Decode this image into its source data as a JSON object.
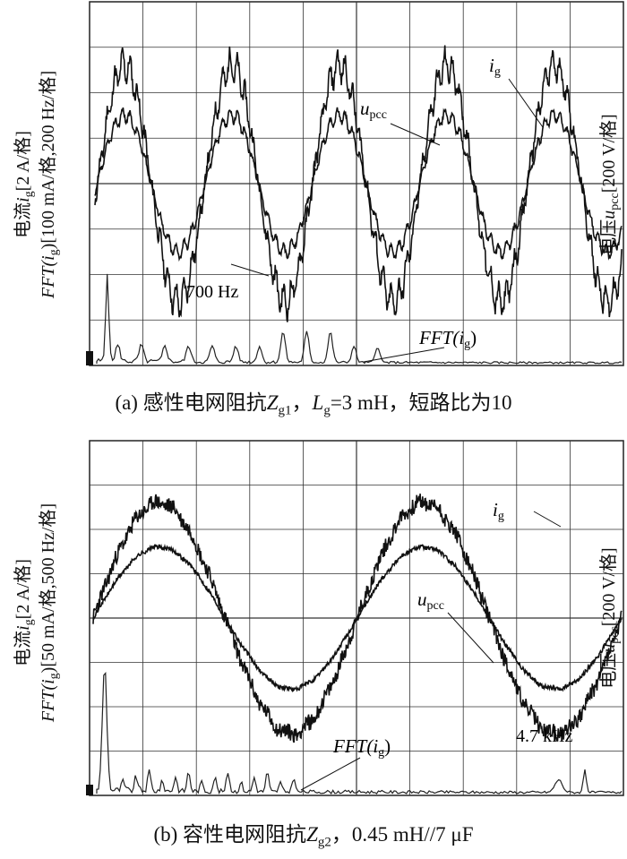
{
  "chart_data": [
    {
      "type": "line",
      "panel": "a",
      "caption": {
        "prefix": "(a) 感性电网阻抗",
        "z": "Z",
        "zsub": "g1",
        "mid": "，",
        "l": "L",
        "lsub": "g",
        "suffix": "=3 mH，短路比为10"
      },
      "ylabel_left": {
        "line1_prefix": "电流",
        "line1_var": "i",
        "line1_sub": "g",
        "line1_suffix": "[2 A/格]",
        "line2_prefix": "FFT(",
        "line2_var": "i",
        "line2_sub": "g",
        "line2_suffix": ")[100 mA/格,200 Hz/格]"
      },
      "ylabel_right": {
        "prefix": "电压",
        "var": "u",
        "sub": "pcc",
        "suffix": "[200 V/格]"
      },
      "series": [
        {
          "name_var": "i",
          "name_sub": "g",
          "amplitude_div": 2.6,
          "cycles": 4.9,
          "distortion": "700 Hz ripple"
        },
        {
          "name_var": "u",
          "name_sub": "pcc",
          "amplitude_div": 1.5,
          "cycles": 4.9
        },
        {
          "name_var": "FFT(i",
          "name_sub": "g",
          "name_tail": ")",
          "peak_freq_label": "700 Hz"
        }
      ],
      "annotations": {
        "ig": {
          "var": "i",
          "sub": "g"
        },
        "upcc": {
          "var": "u",
          "sub": "pcc"
        },
        "fft": {
          "prefix": "FFT(",
          "var": "i",
          "sub": "g",
          "suffix": ")"
        },
        "freq": "700 Hz"
      },
      "grid": true,
      "divisions": {
        "x": 10,
        "y": 8
      }
    },
    {
      "type": "line",
      "panel": "b",
      "caption": {
        "prefix": "(b) 容性电网阻抗",
        "z": "Z",
        "zsub": "g2",
        "suffix": "，0.45 mH//7 μF"
      },
      "ylabel_left": {
        "line1_prefix": "电流",
        "line1_var": "i",
        "line1_sub": "g",
        "line1_suffix": "[2 A/格]",
        "line2_prefix": "FFT(",
        "line2_var": "i",
        "line2_sub": "g",
        "line2_suffix": ")[50 mA/格,500 Hz/格]"
      },
      "ylabel_right": {
        "prefix": "电压",
        "var": "u",
        "sub": "pcc",
        "suffix": "[200 V/格]"
      },
      "series": [
        {
          "name_var": "i",
          "name_sub": "g",
          "amplitude_div": 2.6,
          "cycles": 2.0
        },
        {
          "name_var": "u",
          "name_sub": "pcc",
          "amplitude_div": 1.6,
          "cycles": 2.0
        },
        {
          "name_var": "FFT(i",
          "name_sub": "g",
          "name_tail": ")",
          "peak_freq_label": "4.7 kHz"
        }
      ],
      "annotations": {
        "ig": {
          "var": "i",
          "sub": "g"
        },
        "upcc": {
          "var": "u",
          "sub": "pcc"
        },
        "fft": {
          "prefix": "FFT(",
          "var": "i",
          "sub": "g",
          "suffix": ")"
        },
        "freq": "4.7 kHz"
      },
      "grid": true,
      "divisions": {
        "x": 10,
        "y": 8
      }
    }
  ]
}
